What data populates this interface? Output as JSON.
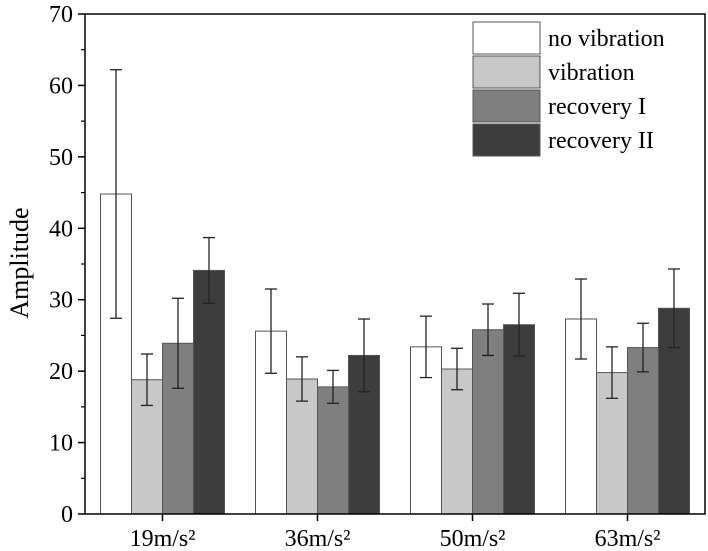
{
  "chart_data": {
    "type": "bar",
    "title": "",
    "xlabel": "",
    "ylabel": "Amplitude",
    "ylim": [
      0,
      70
    ],
    "yticks": [
      "0",
      "10",
      "20",
      "30",
      "40",
      "50",
      "60",
      "70"
    ],
    "categories": [
      "19m/s²",
      "36m/s²",
      "50m/s²",
      "63m/s²"
    ],
    "legend_position": "top-right",
    "series": [
      {
        "name": "no vibration",
        "color": "#ffffff",
        "values": [
          44.8,
          25.6,
          23.4,
          27.3
        ],
        "errors": [
          17.4,
          5.9,
          4.3,
          5.6
        ]
      },
      {
        "name": "vibration",
        "color": "#c8c8c8",
        "values": [
          18.8,
          18.9,
          20.3,
          19.8
        ],
        "errors": [
          3.6,
          3.1,
          2.9,
          3.6
        ]
      },
      {
        "name": "recovery I",
        "color": "#7f7f7f",
        "values": [
          23.9,
          17.8,
          25.8,
          23.3
        ],
        "errors": [
          6.3,
          2.3,
          3.6,
          3.4
        ]
      },
      {
        "name": "recovery II",
        "color": "#3d3d3d",
        "values": [
          34.1,
          22.2,
          26.5,
          28.8
        ],
        "errors": [
          4.6,
          5.1,
          4.4,
          5.5
        ]
      }
    ]
  }
}
